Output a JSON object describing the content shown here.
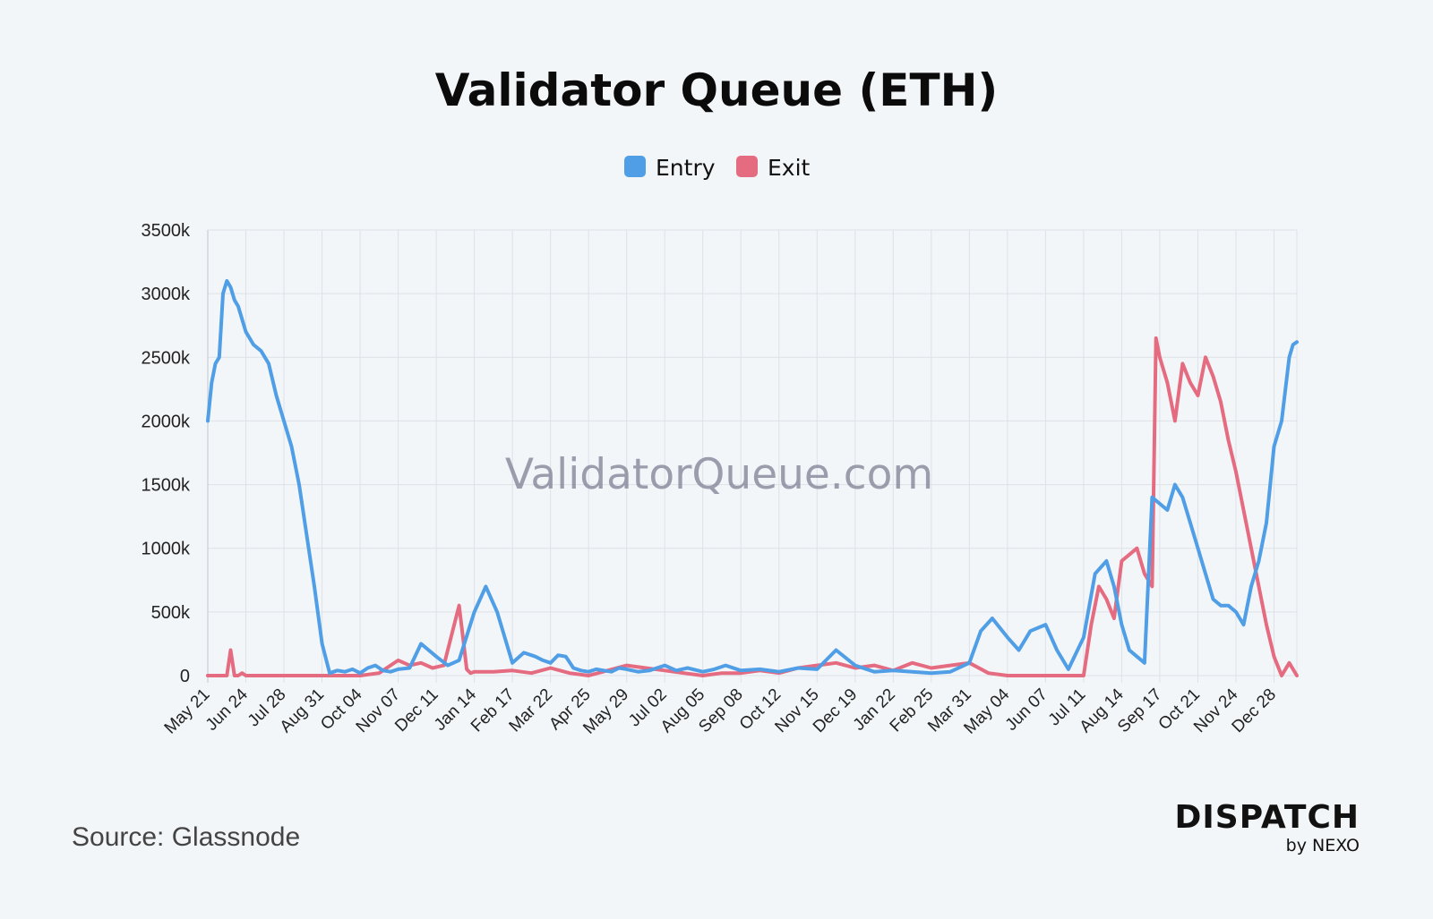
{
  "title": "Validator Queue (ETH)",
  "watermark": "ValidatorQueue.com",
  "source": "Source: Glassnode",
  "brand": {
    "name": "DISPATCH",
    "sub": "by NEXO"
  },
  "colors": {
    "entry": "#4f9ee6",
    "exit": "#e56b80",
    "background": "#f3f6f9"
  },
  "chart_data": {
    "type": "line",
    "title": "Validator Queue (ETH)",
    "xlabel": "",
    "ylabel": "",
    "ylim": [
      0,
      3500
    ],
    "y_unit": "k",
    "yticks": [
      0,
      500,
      1000,
      1500,
      2000,
      2500,
      3000,
      3500
    ],
    "ytick_labels": [
      "0",
      "500k",
      "1000k",
      "1500k",
      "2000k",
      "2500k",
      "3000k",
      "3500k"
    ],
    "xticks": [
      "May 21",
      "Jun 24",
      "Jul 28",
      "Aug 31",
      "Oct 04",
      "Nov 07",
      "Dec 11",
      "Jan 14",
      "Feb 17",
      "Mar 22",
      "Apr 25",
      "May 29",
      "Jul 02",
      "Aug 05",
      "Sep 08",
      "Oct 12",
      "Nov 15",
      "Dec 19",
      "Jan 22",
      "Feb 25",
      "Mar 31",
      "May 04",
      "Jun 07",
      "Jul 11",
      "Aug 14",
      "Sep 17",
      "Oct 21",
      "Nov 24",
      "Dec 28"
    ],
    "x_end_index": 28.6,
    "grid": true,
    "legend_position": "top-center",
    "series": [
      {
        "name": "Entry",
        "color": "#4f9ee6",
        "x": [
          0,
          0.1,
          0.2,
          0.3,
          0.4,
          0.5,
          0.6,
          0.7,
          0.8,
          1.0,
          1.2,
          1.4,
          1.6,
          1.8,
          2.0,
          2.2,
          2.4,
          2.6,
          2.8,
          3.0,
          3.2,
          3.4,
          3.6,
          3.8,
          4.0,
          4.2,
          4.4,
          4.6,
          4.8,
          5.0,
          5.3,
          5.6,
          6.0,
          6.3,
          6.6,
          7.0,
          7.3,
          7.6,
          8.0,
          8.3,
          8.6,
          8.8,
          9.0,
          9.2,
          9.4,
          9.6,
          9.8,
          10.0,
          10.2,
          10.4,
          10.6,
          10.8,
          11.0,
          11.3,
          11.6,
          12.0,
          12.3,
          12.6,
          13.0,
          13.3,
          13.6,
          14.0,
          14.5,
          15.0,
          15.5,
          16.0,
          16.5,
          17.0,
          17.5,
          18.0,
          18.5,
          19.0,
          19.5,
          20.0,
          20.3,
          20.6,
          21.0,
          21.3,
          21.6,
          22.0,
          22.3,
          22.6,
          23.0,
          23.3,
          23.6,
          23.8,
          24.0,
          24.2,
          24.4,
          24.6,
          24.8,
          25.0,
          25.2,
          25.4,
          25.6,
          25.8,
          26.0,
          26.2,
          26.4,
          26.6,
          26.8,
          27.0,
          27.2,
          27.4,
          27.6,
          27.8,
          28.0,
          28.2,
          28.4,
          28.5,
          28.6
        ],
        "values": [
          2000,
          2300,
          2450,
          2500,
          3000,
          3100,
          3050,
          2950,
          2900,
          2700,
          2600,
          2550,
          2450,
          2200,
          2000,
          1800,
          1500,
          1100,
          700,
          250,
          20,
          40,
          30,
          50,
          20,
          60,
          80,
          40,
          30,
          50,
          60,
          250,
          150,
          80,
          120,
          500,
          700,
          500,
          100,
          180,
          150,
          120,
          100,
          160,
          150,
          60,
          40,
          30,
          50,
          40,
          30,
          60,
          50,
          30,
          40,
          80,
          40,
          60,
          30,
          50,
          80,
          40,
          50,
          30,
          60,
          50,
          200,
          80,
          30,
          40,
          30,
          20,
          30,
          100,
          350,
          450,
          300,
          200,
          350,
          400,
          200,
          50,
          300,
          800,
          900,
          700,
          400,
          200,
          150,
          100,
          1400,
          1350,
          1300,
          1500,
          1400,
          1200,
          1000,
          800,
          600,
          550,
          550,
          500,
          400,
          700,
          900,
          1200,
          1800,
          2000,
          2500,
          2600,
          2620
        ]
      },
      {
        "name": "Exit",
        "color": "#e56b80",
        "x": [
          0,
          0.5,
          0.6,
          0.7,
          0.8,
          0.9,
          1.0,
          2.0,
          3.0,
          4.0,
          4.5,
          5.0,
          5.3,
          5.6,
          5.9,
          6.2,
          6.6,
          6.7,
          6.8,
          6.9,
          7.0,
          7.5,
          8.0,
          8.5,
          9.0,
          9.5,
          10.0,
          10.5,
          11.0,
          11.5,
          12.0,
          12.5,
          13.0,
          13.5,
          14.0,
          14.5,
          15.0,
          15.5,
          16.0,
          16.5,
          17.0,
          17.5,
          18.0,
          18.5,
          19.0,
          19.5,
          20.0,
          20.5,
          21.0,
          21.5,
          22.0,
          22.5,
          23.0,
          23.2,
          23.4,
          23.6,
          23.8,
          24.0,
          24.2,
          24.4,
          24.6,
          24.8,
          24.9,
          25.0,
          25.2,
          25.4,
          25.6,
          25.8,
          26.0,
          26.2,
          26.4,
          26.6,
          26.8,
          27.0,
          27.2,
          27.4,
          27.6,
          27.8,
          28.0,
          28.2,
          28.4,
          28.6
        ],
        "values": [
          0,
          0,
          200,
          0,
          0,
          20,
          0,
          0,
          0,
          0,
          20,
          120,
          80,
          100,
          60,
          80,
          550,
          300,
          50,
          20,
          30,
          30,
          40,
          20,
          60,
          20,
          0,
          40,
          80,
          60,
          40,
          20,
          0,
          20,
          20,
          40,
          20,
          60,
          80,
          100,
          60,
          80,
          40,
          100,
          60,
          80,
          100,
          20,
          0,
          0,
          0,
          0,
          0,
          400,
          700,
          600,
          450,
          900,
          950,
          1000,
          800,
          700,
          2650,
          2500,
          2300,
          2000,
          2450,
          2300,
          2200,
          2500,
          2350,
          2150,
          1850,
          1600,
          1300,
          1000,
          700,
          400,
          150,
          0,
          100,
          0
        ]
      }
    ]
  }
}
